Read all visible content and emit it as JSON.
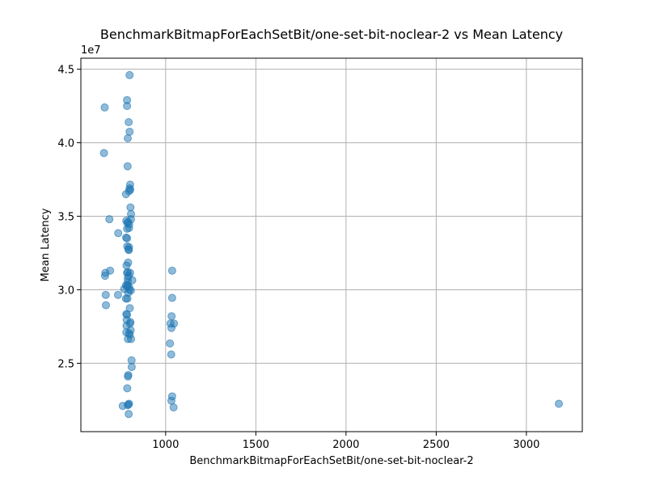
{
  "chart_data": {
    "type": "scatter",
    "title": "BenchmarkBitmapForEachSetBit/one-set-bit-noclear-2 vs Mean Latency",
    "xlabel": "BenchmarkBitmapForEachSetBit/one-set-bit-noclear-2",
    "ylabel": "Mean Latency",
    "y_offset_label": "1e7",
    "y_scale": 10000000,
    "xlim": [
      530,
      3310
    ],
    "ylim": [
      20350000,
      45750000
    ],
    "x_ticks": [
      1000,
      1500,
      2000,
      2500,
      3000
    ],
    "x_tick_labels": [
      "1000",
      "1500",
      "2000",
      "2500",
      "3000"
    ],
    "y_ticks": [
      25000000,
      30000000,
      35000000,
      40000000,
      45000000
    ],
    "y_tick_labels": [
      "2.5",
      "3.0",
      "3.5",
      "4.0",
      "4.5"
    ],
    "grid": true,
    "marker_color": "#1f77b4",
    "points": [
      [
        800,
        44600000
      ],
      [
        786,
        42900000
      ],
      [
        786,
        42500000
      ],
      [
        662,
        42400000
      ],
      [
        795,
        41400000
      ],
      [
        800,
        40750000
      ],
      [
        790,
        40300000
      ],
      [
        658,
        39300000
      ],
      [
        789,
        38400000
      ],
      [
        803,
        37150000
      ],
      [
        800,
        36900000
      ],
      [
        804,
        36800000
      ],
      [
        797,
        36700000
      ],
      [
        780,
        36500000
      ],
      [
        805,
        35600000
      ],
      [
        808,
        35150000
      ],
      [
        688,
        34800000
      ],
      [
        808,
        34800000
      ],
      [
        782,
        34700000
      ],
      [
        793,
        34600000
      ],
      [
        787,
        34550000
      ],
      [
        798,
        34450000
      ],
      [
        797,
        34200000
      ],
      [
        786,
        34150000
      ],
      [
        737,
        33850000
      ],
      [
        781,
        33550000
      ],
      [
        786,
        33500000
      ],
      [
        787,
        32950000
      ],
      [
        797,
        32900000
      ],
      [
        794,
        32750000
      ],
      [
        796,
        32700000
      ],
      [
        792,
        31850000
      ],
      [
        783,
        31650000
      ],
      [
        692,
        31300000
      ],
      [
        666,
        31150000
      ],
      [
        790,
        31200000
      ],
      [
        786,
        31150000
      ],
      [
        803,
        31150000
      ],
      [
        664,
        30950000
      ],
      [
        795,
        30950000
      ],
      [
        790,
        30800000
      ],
      [
        815,
        30650000
      ],
      [
        790,
        30550000
      ],
      [
        780,
        30300000
      ],
      [
        789,
        30300000
      ],
      [
        786,
        30250000
      ],
      [
        797,
        30200000
      ],
      [
        770,
        30050000
      ],
      [
        799,
        30000000
      ],
      [
        807,
        29950000
      ],
      [
        793,
        29800000
      ],
      [
        736,
        29650000
      ],
      [
        668,
        29650000
      ],
      [
        780,
        29400000
      ],
      [
        788,
        29400000
      ],
      [
        669,
        28950000
      ],
      [
        801,
        28750000
      ],
      [
        782,
        28350000
      ],
      [
        786,
        28300000
      ],
      [
        784,
        27950000
      ],
      [
        805,
        27800000
      ],
      [
        802,
        27700000
      ],
      [
        783,
        27550000
      ],
      [
        806,
        27250000
      ],
      [
        782,
        27100000
      ],
      [
        797,
        27050000
      ],
      [
        801,
        26950000
      ],
      [
        791,
        26650000
      ],
      [
        808,
        26650000
      ],
      [
        811,
        25200000
      ],
      [
        812,
        24750000
      ],
      [
        793,
        24200000
      ],
      [
        791,
        24100000
      ],
      [
        787,
        23300000
      ],
      [
        797,
        22250000
      ],
      [
        793,
        22200000
      ],
      [
        790,
        22150000
      ],
      [
        762,
        22100000
      ],
      [
        795,
        21550000
      ],
      [
        1036,
        31300000
      ],
      [
        1036,
        29450000
      ],
      [
        1033,
        28200000
      ],
      [
        1027,
        27700000
      ],
      [
        1046,
        27700000
      ],
      [
        1032,
        27400000
      ],
      [
        1024,
        26350000
      ],
      [
        1031,
        25600000
      ],
      [
        1036,
        22750000
      ],
      [
        1032,
        22450000
      ],
      [
        1044,
        22000000
      ],
      [
        3180,
        22250000
      ]
    ]
  }
}
